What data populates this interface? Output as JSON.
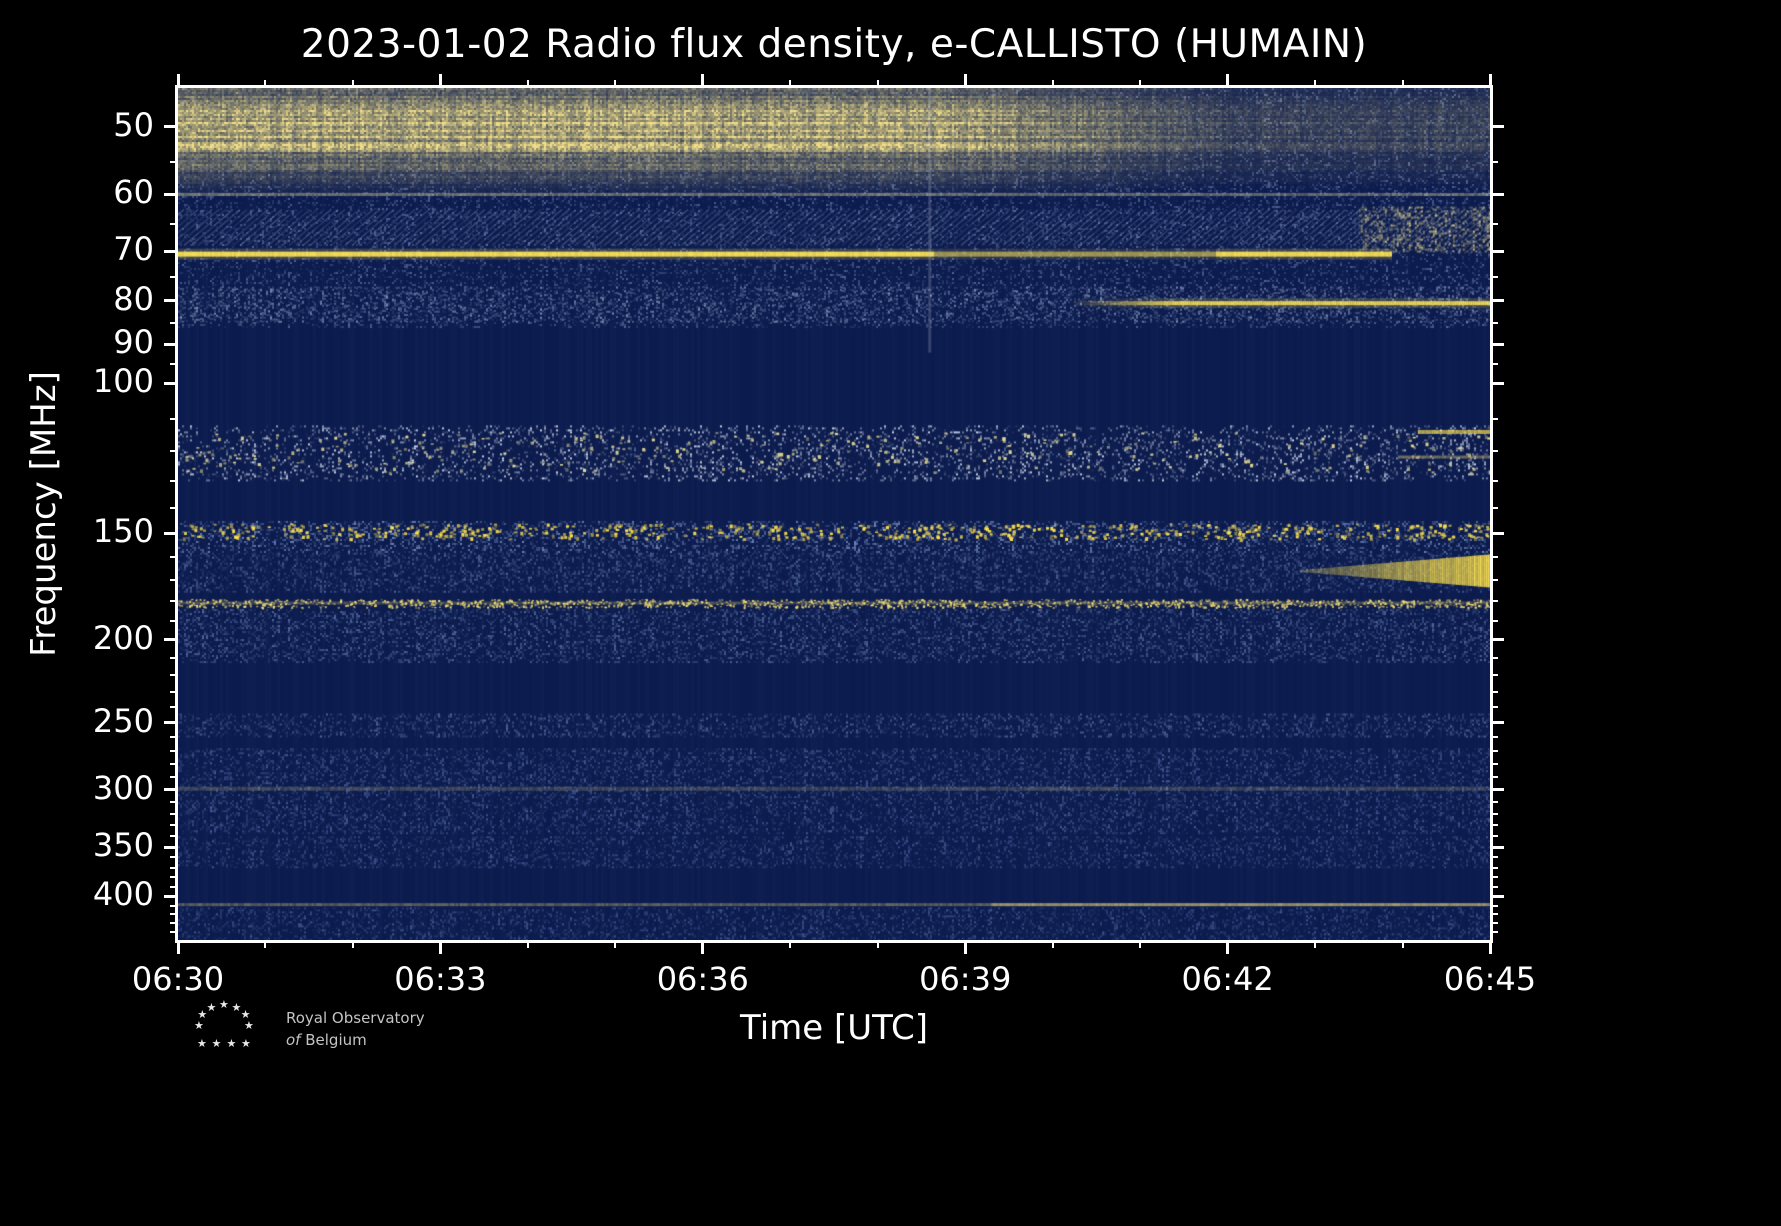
{
  "title": "2023-01-02 Radio flux density, e-CALLISTO (HUMAIN)",
  "axes": {
    "xlabel": "Time [UTC]",
    "ylabel": "Frequency [MHz]",
    "x_tick_labels": [
      "06:30",
      "06:33",
      "06:36",
      "06:39",
      "06:42",
      "06:45"
    ],
    "x_minor_tick_minutes": 1,
    "y_tick_labels": [
      50,
      60,
      70,
      80,
      90,
      100,
      150,
      200,
      250,
      300,
      350,
      400
    ],
    "y_minor_ticks": [
      55,
      65,
      75,
      85,
      95,
      110,
      120,
      130,
      140,
      160,
      170,
      180,
      190,
      210,
      220,
      230,
      240,
      260,
      270,
      280,
      290,
      310,
      320,
      330,
      340,
      360,
      370,
      380,
      390,
      410,
      420,
      430,
      440
    ],
    "freq_min_mhz": 45,
    "freq_max_mhz": 450,
    "y_scale": "log",
    "time_start": "06:30",
    "time_end": "06:45"
  },
  "logo": {
    "line1": "Royal Observatory",
    "line2_italic": "of",
    "line2_rest": "Belgium",
    "star_glyph": "★"
  },
  "colors": {
    "page_bg": "#000000",
    "plot_base": "#0c1b4d",
    "axis": "#ffffff",
    "text": "#ffffff",
    "logo_text": "#c4c4c4",
    "bright_emission": "#ffe557",
    "weak_emission": "#5d77b4"
  },
  "chart_data": {
    "type": "heatmap",
    "title": "2023-01-02 Radio flux density, e-CALLISTO (HUMAIN)",
    "xlabel": "Time [UTC]",
    "ylabel": "Frequency [MHz]",
    "x_range": [
      "06:30",
      "06:45"
    ],
    "y_range_mhz": [
      45,
      450
    ],
    "y_scale": "log",
    "colormap": "dark navy blue (low flux) to bright yellow (high flux)",
    "features": [
      "Broad bright emission band 45-58 MHz, brightest around 50 MHz, fading after ~06:38:30",
      "Narrow moderate band at ~60 MHz across full interval",
      "Diagonal hatched interference pattern 62-69 MHz, brighter tan toward right edge",
      "Very bright narrow line at ~70.5 MHz from 06:30 to ~06:43.5",
      "Bright narrow line at ~80.5 MHz appearing after ~06:40 until 06:45",
      "Quiet dark region ~86-110 MHz",
      "Speckled noisy band 112-130 MHz with yellow bursts, bright lines at right edge",
      "Speckled yellow dotted line near 148 MHz across full interval",
      "Bright yellow wedge 159-173 MHz growing from ~06:42.5 to 06:45",
      "Speckled yellow line at ~181 MHz across full interval",
      "Blue noise bands 184-212 MHz, 244-260 MHz, 268-338 MHz, 340-370 MHz, 412-450 MHz",
      "Faint pale line near 299 MHz and thin line near 409 MHz (brighter right half)",
      "Faint vertical feature at ~06:38:35 in the 45-92 MHz range"
    ],
    "bands": [
      {
        "name": "upper-blue-noise",
        "style": "noise",
        "f1": 45,
        "f2": 86,
        "color": "#7e93c4",
        "density": 0.28,
        "alpha": 0.22
      },
      {
        "name": "broad-50mhz-emission",
        "style": "glow",
        "f1": 45,
        "f2": 60,
        "fc": 50,
        "color": "#f2df86",
        "peak": 0.92,
        "fade_start": 0.575,
        "fade_end": 0.8,
        "fade_level": 0.28
      },
      {
        "name": "60mhz-band",
        "style": "line",
        "f": 60,
        "h": 3,
        "color": "#d6cf9a",
        "alpha": 0.5,
        "jitter": 0.45
      },
      {
        "name": "hatch-62-69mhz",
        "style": "hatch",
        "f1": 62.5,
        "f2": 69.5,
        "color": "#a8b4cf",
        "alpha": 0.33
      },
      {
        "name": "hatch-bright-right",
        "style": "noise",
        "f1": 62,
        "f2": 70,
        "t1": 0.9,
        "t2": 1,
        "color": "#e0cf82",
        "density": 0.5,
        "alpha": 0.35
      },
      {
        "name": "70mhz-line",
        "style": "line",
        "f": 70.5,
        "h": 5,
        "halo": 3,
        "color": "#ffe557",
        "alpha": 0.95,
        "jitter": 0.12,
        "t1": 0,
        "t2": 0.924,
        "dim": [
          0.575,
          0.79,
          0.6
        ]
      },
      {
        "name": "78-84-noise",
        "style": "noise",
        "f1": 77,
        "f2": 84.5,
        "color": "#93a2c4",
        "density": 0.3,
        "alpha": 0.28
      },
      {
        "name": "80mhz-line",
        "style": "line",
        "f": 80.5,
        "h": 4,
        "halo": 3,
        "color": "#ffe557",
        "alpha": 0.92,
        "jitter": 0.12,
        "t1": 0.68,
        "t2": 1,
        "ramp_in": 0.25
      },
      {
        "name": "112-130-speckle-band",
        "style": "noise",
        "f1": 112,
        "f2": 130,
        "color": "#c3cde2",
        "density": 0.22,
        "alpha": 0.4
      },
      {
        "name": "112-130-dots",
        "style": "speckle",
        "f1": 114,
        "f2": 127,
        "count": 300,
        "size": 3,
        "color": "#e6da8e"
      },
      {
        "name": "113mhz-right-line",
        "style": "line",
        "f": 114,
        "h": 4,
        "t1": 0.945,
        "t2": 1,
        "color": "#ffe557",
        "alpha": 0.75,
        "jitter": 0.2
      },
      {
        "name": "122mhz-right-line",
        "style": "line",
        "f": 122,
        "h": 3,
        "t1": 0.93,
        "t2": 1,
        "color": "#e5cf6f",
        "alpha": 0.5,
        "jitter": 0.3
      },
      {
        "name": "146-158-noise",
        "style": "noise",
        "f1": 145,
        "f2": 158,
        "color": "#6b82b8",
        "density": 0.38,
        "alpha": 0.38
      },
      {
        "name": "148mhz-speckle-line",
        "style": "speckle",
        "f1": 146,
        "f2": 152,
        "count": 650,
        "size": 3,
        "color": "#ffe34f"
      },
      {
        "name": "158-176-noise",
        "style": "noise",
        "f1": 158,
        "f2": 176,
        "color": "#54699f",
        "density": 0.4,
        "alpha": 0.34
      },
      {
        "name": "160-173-wedge",
        "style": "wedge",
        "fc": 166,
        "f1": 159,
        "f2": 173,
        "t1": 0.855,
        "t2": 1,
        "color": "#ffe34f",
        "alpha": 0.95
      },
      {
        "name": "180mhz-line-base",
        "style": "line",
        "f": 181,
        "h": 3,
        "color": "#cdbd72",
        "alpha": 0.4,
        "jitter": 0.5
      },
      {
        "name": "180mhz-speckle-line",
        "style": "speckle",
        "f1": 179,
        "f2": 183,
        "count": 1400,
        "size": 2,
        "color": "#f3df74"
      },
      {
        "name": "184-212-noise",
        "style": "noise",
        "f1": 184,
        "f2": 212,
        "color": "#54699f",
        "density": 0.4,
        "alpha": 0.34
      },
      {
        "name": "244-260-noise",
        "style": "noise",
        "f1": 244,
        "f2": 260,
        "color": "#5d74ab",
        "density": 0.35,
        "alpha": 0.3
      },
      {
        "name": "268-338-noise",
        "style": "noise",
        "f1": 268,
        "f2": 338,
        "color": "#4f66a3",
        "density": 0.38,
        "alpha": 0.3
      },
      {
        "name": "300mhz-line",
        "style": "line",
        "f": 299,
        "h": 4,
        "color": "#b3a873",
        "alpha": 0.35,
        "jitter": 0.5
      },
      {
        "name": "340-370-noise",
        "style": "noise",
        "f1": 340,
        "f2": 370,
        "color": "#4f66a3",
        "density": 0.36,
        "alpha": 0.28
      },
      {
        "name": "409mhz-line",
        "style": "line",
        "f": 409,
        "h": 3,
        "color": "#d9c87c",
        "alpha": 0.45,
        "jitter": 0.45
      },
      {
        "name": "409mhz-line-right",
        "style": "line",
        "f": 409,
        "h": 3,
        "t1": 0.62,
        "t2": 1,
        "color": "#e8d478",
        "alpha": 0.55,
        "jitter": 0.3
      },
      {
        "name": "412-450-noise",
        "style": "noise",
        "f1": 412,
        "f2": 450,
        "color": "#4f66a3",
        "density": 0.36,
        "alpha": 0.28
      },
      {
        "name": "0638-vertical-line",
        "style": "vline",
        "t": 0.573,
        "f1": 45,
        "f2": 92,
        "w": 3,
        "color": "#c7d1e8",
        "alpha": 0.22
      }
    ]
  }
}
